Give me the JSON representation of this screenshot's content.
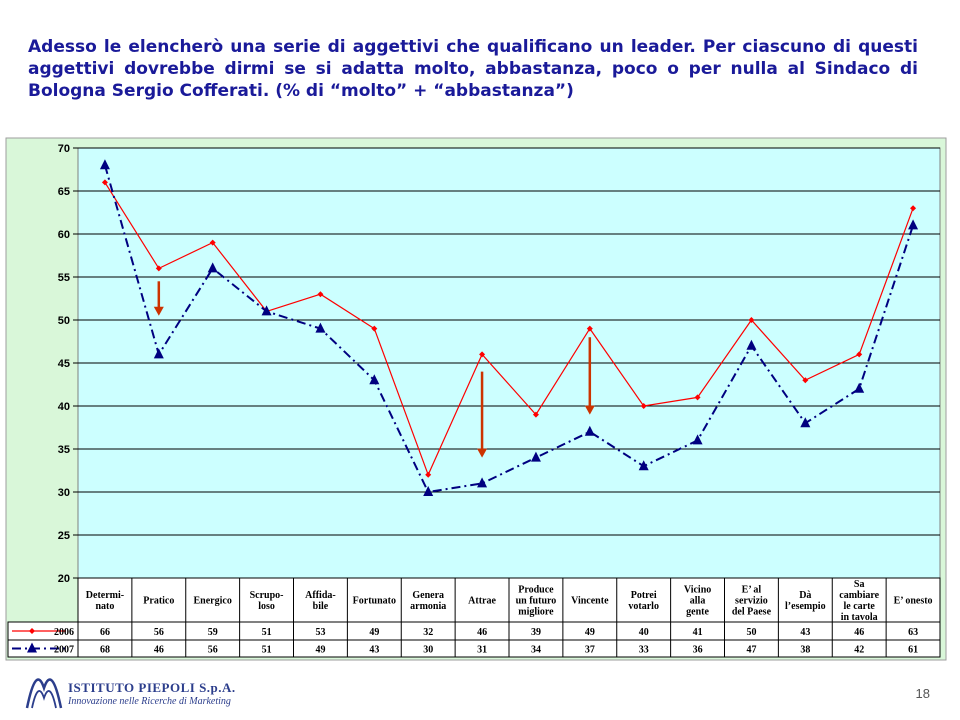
{
  "header": {
    "title": "Adesso le elencherò una serie di aggettivi che qualificano un leader. Per ciascuno di questi aggettivi dovrebbe dirmi se si adatta molto, abbastanza, poco o per nulla al Sindaco di Bologna Sergio Cofferati. (% di “molto” + “abbastanza”)"
  },
  "chart_data": {
    "type": "line",
    "ylim": [
      20,
      70
    ],
    "yticks": [
      20,
      25,
      30,
      35,
      40,
      45,
      50,
      55,
      60,
      65,
      70
    ],
    "grid": true,
    "categories": [
      [
        "Determi-",
        "nato"
      ],
      [
        "Pratico"
      ],
      [
        "Energico"
      ],
      [
        "Scrupo-",
        "loso"
      ],
      [
        "Affida-",
        "bile"
      ],
      [
        "Fortunato"
      ],
      [
        "Genera",
        "armonia"
      ],
      [
        "Attrae"
      ],
      [
        "Produce",
        "un futuro",
        "migliore"
      ],
      [
        "Vincente"
      ],
      [
        "Potrei",
        "votarlo"
      ],
      [
        "Vicino",
        "alla",
        "gente"
      ],
      [
        "E’ al",
        "servizio",
        "del Paese"
      ],
      [
        "Dà",
        "l’esempio"
      ],
      [
        "Sa",
        "cambiare",
        "le carte",
        "in tavola"
      ],
      [
        "E’ onesto"
      ]
    ],
    "series": [
      {
        "name": "2006",
        "color": "#ff0000",
        "marker": "diamond",
        "line": "solid",
        "values": [
          66,
          56,
          59,
          51,
          53,
          49,
          32,
          46,
          39,
          49,
          40,
          41,
          50,
          43,
          46,
          63
        ]
      },
      {
        "name": "2007",
        "color": "#000080",
        "marker": "triangle",
        "line": "dashdot",
        "values": [
          68,
          46,
          56,
          51,
          49,
          43,
          30,
          31,
          34,
          37,
          33,
          36,
          47,
          38,
          42,
          61
        ]
      }
    ],
    "annotations": [
      {
        "type": "arrow-down",
        "category_index": 1,
        "from": 54.5,
        "to": 50.5,
        "color": "#cc3300"
      },
      {
        "type": "arrow-down",
        "category_index": 7,
        "from": 44,
        "to": 34,
        "color": "#cc3300"
      },
      {
        "type": "arrow-down",
        "category_index": 9,
        "from": 48,
        "to": 39,
        "color": "#cc3300"
      }
    ],
    "legend": "table-rows"
  },
  "footer": {
    "logo_name": "ISTITUTO PIEPOLI S.p.A.",
    "logo_tagline": "Innovazione nelle Ricerche di Marketing",
    "page_number": "18"
  },
  "colors": {
    "title": "#1a1a99",
    "chart_bg": "#d9f7d9",
    "plot_bg": "#ccffff",
    "arrow": "#cc3300"
  }
}
